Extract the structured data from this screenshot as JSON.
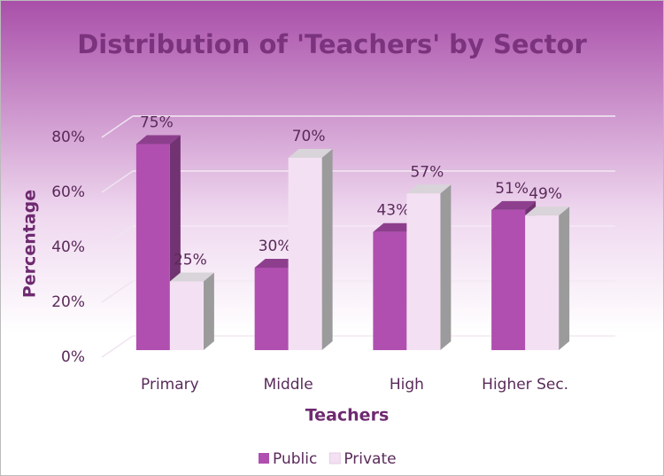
{
  "chart_data": {
    "type": "bar3d",
    "title": "Distribution of 'Teachers' by Sector",
    "x_label": "Teachers",
    "y_label": "Percentage",
    "categories": [
      "Primary",
      "Middle",
      "High",
      "Higher Sec."
    ],
    "series": [
      {
        "name": "Public",
        "color": "#b04fb0",
        "values": [
          75,
          30,
          43,
          51
        ],
        "value_labels": [
          "75%",
          "30%",
          "43%",
          "51%"
        ]
      },
      {
        "name": "Private",
        "color": "#f3e1f3",
        "values": [
          25,
          70,
          57,
          49
        ],
        "value_labels": [
          "25%",
          "70%",
          "57%",
          "49%"
        ]
      }
    ],
    "ylim": [
      0,
      80
    ],
    "yticks": [
      {
        "value": 0,
        "label": "0%"
      },
      {
        "value": 20,
        "label": "20%"
      },
      {
        "value": 40,
        "label": "40%"
      },
      {
        "value": 60,
        "label": "60%"
      },
      {
        "value": 80,
        "label": "80%"
      }
    ],
    "grid": true,
    "legend": "bottom"
  }
}
